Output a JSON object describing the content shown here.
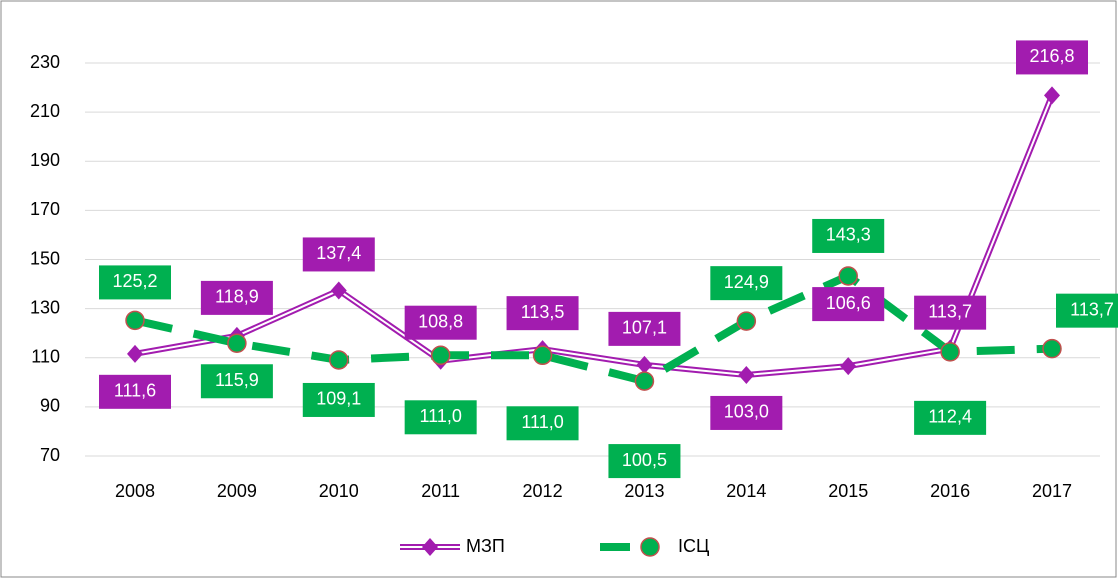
{
  "chart_data": {
    "type": "line",
    "categories": [
      "2008",
      "2009",
      "2010",
      "2011",
      "2012",
      "2013",
      "2014",
      "2015",
      "2016",
      "2017"
    ],
    "series": [
      {
        "name": "МЗП",
        "color": "#a21caf",
        "values": [
          111.6,
          118.9,
          137.4,
          108.8,
          113.5,
          107.1,
          103.0,
          106.6,
          113.7,
          216.8
        ],
        "value_labels": [
          "111,6",
          "118,9",
          "137,4",
          "108,8",
          "113,5",
          "107,1",
          "103,0",
          "106,6",
          "113,7",
          "216,8"
        ]
      },
      {
        "name": "ІСЦ",
        "color": "#00b050",
        "values": [
          125.2,
          115.9,
          109.1,
          111.0,
          111.0,
          100.5,
          124.9,
          143.3,
          112.4,
          113.7
        ],
        "value_labels": [
          "125,2",
          "115,9",
          "109,1",
          "111,0",
          "111,0",
          "100,5",
          "124,9",
          "143,3",
          "112,4",
          "113,7"
        ]
      }
    ],
    "ylim": [
      70,
      230
    ],
    "yticks": [
      70,
      90,
      110,
      130,
      150,
      170,
      190,
      210,
      230
    ],
    "grid": true,
    "legend": "bottom"
  }
}
